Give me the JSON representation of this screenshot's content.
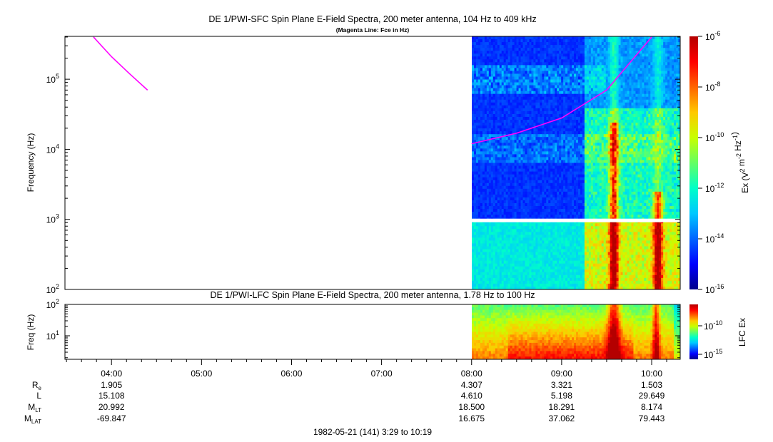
{
  "colors": {
    "background": "#ffffff",
    "fce_line": "#ff00ff",
    "colormap": [
      "#00008b",
      "#0000ff",
      "#0064ff",
      "#00c8ff",
      "#00ffc8",
      "#64ff64",
      "#c8ff00",
      "#ffc800",
      "#ff6400",
      "#ff0000",
      "#b40000"
    ]
  },
  "chart_data": [
    {
      "type": "heatmap",
      "title": "DE 1/PWI-SFC  Spin Plane E-Field Spectra, 200 meter antenna, 104 Hz to 409 kHz",
      "subtitle": "(Magenta Line: Fce in Hz)",
      "ylabel": "Frequency (Hz)",
      "yscale": "log",
      "ylim": [
        100,
        409000
      ],
      "y_tick_labels": [
        "10^2",
        "10^3",
        "10^4",
        "10^5"
      ],
      "data_start": "08:00",
      "colorbar": {
        "label": "Ex (V^2 m^-2 Hz^-1)",
        "scale": "log",
        "range": [
          1e-16,
          1e-06
        ],
        "tick_labels": [
          "10^-6",
          "10^-8",
          "10^-10",
          "10^-12",
          "10^-14",
          "10^-16"
        ]
      },
      "fce_line": {
        "segment1": [
          [
            3.8,
            400000
          ],
          [
            4.0,
            210000
          ],
          [
            4.2,
            120000
          ],
          [
            4.4,
            70000
          ]
        ],
        "segment2": [
          [
            8.0,
            12000
          ],
          [
            8.5,
            17000
          ],
          [
            9.0,
            28000
          ],
          [
            9.5,
            70000
          ],
          [
            10.0,
            400000
          ]
        ]
      }
    },
    {
      "type": "heatmap",
      "title": "DE 1/PWI-LFC  Spin Plane E-Field Spectra, 200 meter antenna, 1.78 Hz to 100 Hz",
      "ylabel": "Freq (Hz)",
      "yscale": "log",
      "ylim": [
        1.78,
        100
      ],
      "y_tick_labels": [
        "10^1",
        "10^2"
      ],
      "data_start": "08:00",
      "colorbar": {
        "label": "LFC Ex",
        "scale": "log",
        "tick_labels": [
          "10^-10",
          "10^-15"
        ]
      }
    }
  ],
  "x_axis": {
    "tick_labels": [
      "04:00",
      "05:00",
      "06:00",
      "07:00",
      "08:00",
      "09:00",
      "10:00"
    ],
    "range_hours": [
      3.483,
      10.317
    ]
  },
  "ephemeris": {
    "row_labels": [
      {
        "main": "R",
        "sub": "e"
      },
      {
        "main": "L",
        "sub": ""
      },
      {
        "main": "M",
        "sub": "LT"
      },
      {
        "main": "M",
        "sub": "LAT"
      }
    ],
    "columns": [
      {
        "time": "04:00",
        "values": [
          "1.905",
          "15.108",
          "20.992",
          "-69.847"
        ]
      },
      {
        "time": "08:00",
        "values": [
          "4.307",
          "4.610",
          "18.500",
          "16.675"
        ]
      },
      {
        "time": "09:00",
        "values": [
          "3.321",
          "5.198",
          "18.291",
          "37.062"
        ]
      },
      {
        "time": "10:00",
        "values": [
          "1.503",
          "29.649",
          "8.174",
          "79.443"
        ]
      }
    ]
  },
  "footer": "1982-05-21 (141) 3:29 to 10:19"
}
